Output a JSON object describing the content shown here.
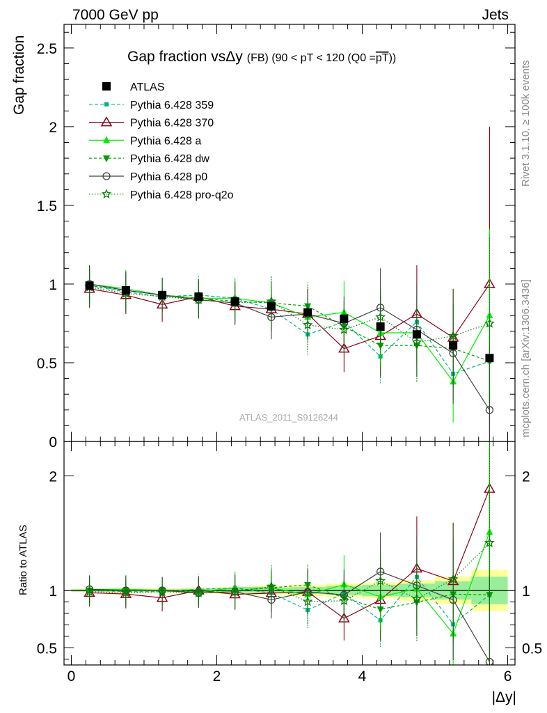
{
  "header": {
    "left": "7000 GeV pp",
    "right": "Jets"
  },
  "side_text": {
    "top": "Rivet 3.1.10, ≥ 100k events",
    "bottom": "mcplots.cern.ch [arXiv:1306.3436]"
  },
  "watermark": "ATLAS_2011_S9126244",
  "chart_data": {
    "type": "scatter",
    "title_main": "Gap fraction vsΔy",
    "title_detail": "(FB) (90 < pT < 120 (Q0 =",
    "title_overline": "pT",
    "title_close": "))",
    "xlabel": "|Δy|",
    "ylabel_main": "Gap fraction",
    "ylabel_ratio": "Ratio to ATLAS",
    "xlim": [
      -0.1,
      6.1
    ],
    "ylim_main": [
      0,
      2.65
    ],
    "ylim_ratio": [
      0.35,
      2.3
    ],
    "x_ticks": [
      "0",
      "2",
      "4",
      "6"
    ],
    "y_ticks_main": [
      "0",
      "0.5",
      "1",
      "1.5",
      "2",
      "2.5"
    ],
    "y_ticks_ratio": [
      "0.5",
      "1",
      "2"
    ],
    "x": [
      0.25,
      0.75,
      1.25,
      1.75,
      2.25,
      2.75,
      3.25,
      3.75,
      4.25,
      4.75,
      5.25,
      5.75
    ],
    "atlas": {
      "name": "ATLAS",
      "values": [
        0.99,
        0.96,
        0.93,
        0.92,
        0.89,
        0.86,
        0.82,
        0.78,
        0.73,
        0.68,
        0.61,
        0.53
      ],
      "ratio_band_inner": [
        0.01,
        0.01,
        0.01,
        0.015,
        0.02,
        0.025,
        0.03,
        0.04,
        0.05,
        0.06,
        0.08,
        0.12
      ],
      "ratio_band_outer": [
        0.015,
        0.02,
        0.02,
        0.025,
        0.03,
        0.04,
        0.05,
        0.06,
        0.07,
        0.09,
        0.12,
        0.18
      ]
    },
    "series": [
      {
        "name": "Pythia 6.428 359",
        "color": "#00b386",
        "dash": "5,3",
        "marker": "square-small",
        "values": [
          0.99,
          0.95,
          0.92,
          0.93,
          0.91,
          0.84,
          0.68,
          0.76,
          0.54,
          0.76,
          0.43,
          0.51
        ],
        "errors": [
          0.12,
          0.12,
          0.11,
          0.12,
          0.13,
          0.14,
          0.13,
          0.13,
          0.17,
          0.16,
          0.15,
          0.2
        ]
      },
      {
        "name": "Pythia 6.428 370",
        "color": "#8b0016",
        "dash": "",
        "marker": "triangle-open",
        "values": [
          0.97,
          0.93,
          0.87,
          0.92,
          0.86,
          0.84,
          0.81,
          0.59,
          0.67,
          0.81,
          0.66,
          1.0
        ],
        "errors": [
          0.12,
          0.12,
          0.11,
          0.11,
          0.12,
          0.14,
          0.16,
          0.15,
          0.26,
          0.31,
          0.31,
          1.0
        ]
      },
      {
        "name": "Pythia 6.428 a",
        "color": "#00ee00",
        "dash": "",
        "marker": "triangle-up",
        "values": [
          1.0,
          0.97,
          0.93,
          0.91,
          0.91,
          0.88,
          0.79,
          0.82,
          0.69,
          0.69,
          0.38,
          0.8
        ],
        "errors": [
          0.12,
          0.12,
          0.11,
          0.11,
          0.12,
          0.13,
          0.15,
          0.2,
          0.21,
          0.23,
          0.26,
          0.55
        ]
      },
      {
        "name": "Pythia 6.428 dw",
        "color": "#00a000",
        "dash": "4,3",
        "marker": "triangle-down",
        "values": [
          0.99,
          0.96,
          0.93,
          0.91,
          0.89,
          0.88,
          0.86,
          0.73,
          0.61,
          0.61,
          0.59,
          0.51
        ],
        "errors": [
          0.12,
          0.12,
          0.11,
          0.12,
          0.13,
          0.14,
          0.15,
          0.16,
          0.2,
          0.23,
          0.26,
          0.3
        ]
      },
      {
        "name": "Pythia 6.428 p0",
        "color": "#404040",
        "dash": "",
        "marker": "circle-open",
        "values": [
          1.0,
          0.96,
          0.93,
          0.9,
          0.88,
          0.79,
          0.81,
          0.75,
          0.85,
          0.71,
          0.56,
          0.2
        ],
        "errors": [
          0.12,
          0.12,
          0.11,
          0.12,
          0.13,
          0.14,
          0.16,
          0.17,
          0.25,
          0.3,
          0.32,
          0.4
        ]
      },
      {
        "name": "Pythia 6.428 pro-q2o",
        "color": "#008000",
        "dash": "1.5,2.5",
        "marker": "star",
        "values": [
          0.98,
          0.94,
          0.92,
          0.9,
          0.88,
          0.89,
          0.74,
          0.71,
          0.79,
          0.63,
          0.67,
          0.75
        ],
        "errors": [
          0.12,
          0.12,
          0.11,
          0.11,
          0.13,
          0.16,
          0.16,
          0.15,
          0.19,
          0.22,
          0.3,
          0.55
        ]
      }
    ]
  }
}
